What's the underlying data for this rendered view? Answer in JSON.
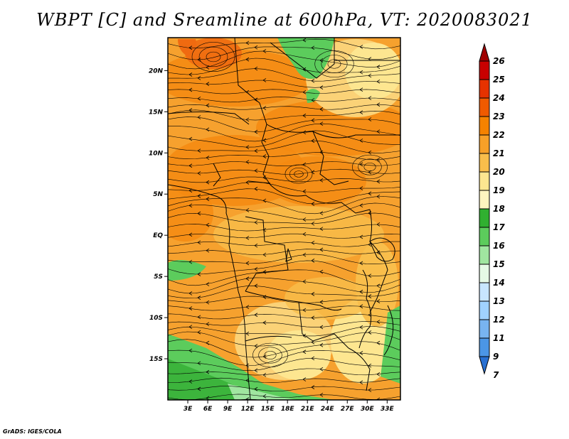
{
  "title": "WBPT [C] and Sreamline at 600hPa, VT: 2020083021",
  "credit": "GrADS: IGES/COLA",
  "map": {
    "lon_range": [
      0,
      35
    ],
    "lat_range": [
      -20,
      24
    ],
    "lat_ticks": [
      {
        "value": 20,
        "label": "20N"
      },
      {
        "value": 15,
        "label": "15N"
      },
      {
        "value": 10,
        "label": "10N"
      },
      {
        "value": 5,
        "label": "5N"
      },
      {
        "value": 0,
        "label": "EQ"
      },
      {
        "value": -5,
        "label": "5S"
      },
      {
        "value": -10,
        "label": "10S"
      },
      {
        "value": -15,
        "label": "15S"
      }
    ],
    "lon_ticks": [
      {
        "value": 3,
        "label": "3E"
      },
      {
        "value": 6,
        "label": "6E"
      },
      {
        "value": 9,
        "label": "9E"
      },
      {
        "value": 12,
        "label": "12E"
      },
      {
        "value": 15,
        "label": "15E"
      },
      {
        "value": 18,
        "label": "18E"
      },
      {
        "value": 21,
        "label": "21E"
      },
      {
        "value": 24,
        "label": "24E"
      },
      {
        "value": 27,
        "label": "27E"
      },
      {
        "value": 30,
        "label": "30E"
      },
      {
        "value": 33,
        "label": "33E"
      }
    ]
  },
  "colorbar": {
    "levels": [
      "26",
      "25",
      "24",
      "23",
      "22",
      "21",
      "20",
      "19",
      "18",
      "17",
      "16",
      "15",
      "14",
      "13",
      "12",
      "11",
      "9",
      "7"
    ],
    "colors": [
      "#a00000",
      "#c80000",
      "#e63200",
      "#f05a00",
      "#f58200",
      "#f7a028",
      "#f9be4b",
      "#fde690",
      "#fff5c0",
      "#30b030",
      "#5ccc5c",
      "#a0e6a0",
      "#e6fae6",
      "#c8e6ff",
      "#a0d2ff",
      "#78b4f0",
      "#4b96e6",
      "#2870d2"
    ]
  }
}
